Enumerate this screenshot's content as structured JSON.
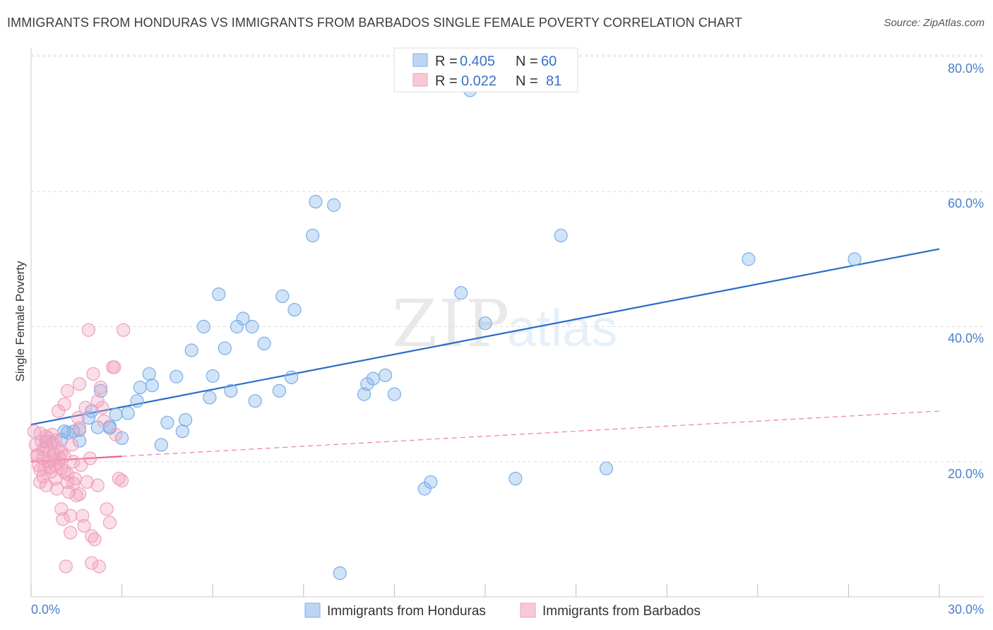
{
  "chart_data": {
    "type": "scatter",
    "title": "IMMIGRANTS FROM HONDURAS VS IMMIGRANTS FROM BARBADOS SINGLE FEMALE POVERTY CORRELATION CHART",
    "source": "Source: ZipAtlas.com",
    "ylabel": "Single Female Poverty",
    "xlabel": "",
    "xlim": [
      0,
      30
    ],
    "ylim": [
      0,
      80
    ],
    "x_tick_labels": [
      "0.0%",
      "30.0%"
    ],
    "y_tick_labels": [
      "20.0%",
      "40.0%",
      "60.0%",
      "80.0%"
    ],
    "y_ticks": [
      20,
      40,
      60,
      80
    ],
    "grid": "horizontal dashed",
    "watermark": "ZIPatlas",
    "legend_box": [
      {
        "series": "Immigrants from Honduras",
        "r_label": "R = ",
        "r_value": "0.405",
        "n_label": "N = ",
        "n_value": "60"
      },
      {
        "series": "Immigrants from Barbados",
        "r_label": "R = ",
        "r_value": "0.022",
        "n_label": "N = ",
        "n_value": "81"
      }
    ],
    "series": [
      {
        "name": "Immigrants from Honduras",
        "color": "#7aaee8",
        "line_color": "#2a6cc9",
        "trend": {
          "x0": 0,
          "y0": 25.5,
          "x1": 30,
          "y1": 51.5,
          "style": "solid"
        },
        "points": [
          [
            0.5,
            23.0
          ],
          [
            1.0,
            23.3
          ],
          [
            1.1,
            24.5
          ],
          [
            1.4,
            24.5
          ],
          [
            1.6,
            24.7
          ],
          [
            1.6,
            23.1
          ],
          [
            1.9,
            26.5
          ],
          [
            2.0,
            27.5
          ],
          [
            2.2,
            25.1
          ],
          [
            2.3,
            30.5
          ],
          [
            2.6,
            25.0
          ],
          [
            2.8,
            27.0
          ],
          [
            3.0,
            23.5
          ],
          [
            3.2,
            27.2
          ],
          [
            3.5,
            29.0
          ],
          [
            3.6,
            31.0
          ],
          [
            3.9,
            33.0
          ],
          [
            4.0,
            31.3
          ],
          [
            4.3,
            22.5
          ],
          [
            4.5,
            25.8
          ],
          [
            4.8,
            32.6
          ],
          [
            5.0,
            24.5
          ],
          [
            5.1,
            26.2
          ],
          [
            5.3,
            36.5
          ],
          [
            5.7,
            40.0
          ],
          [
            5.9,
            29.5
          ],
          [
            6.0,
            32.7
          ],
          [
            6.2,
            44.8
          ],
          [
            6.4,
            36.8
          ],
          [
            6.6,
            30.5
          ],
          [
            6.8,
            40.0
          ],
          [
            7.0,
            41.2
          ],
          [
            7.3,
            40.0
          ],
          [
            7.4,
            29.0
          ],
          [
            7.7,
            37.5
          ],
          [
            8.2,
            30.5
          ],
          [
            8.3,
            44.5
          ],
          [
            8.7,
            42.5
          ],
          [
            8.6,
            32.5
          ],
          [
            9.3,
            53.5
          ],
          [
            9.4,
            58.5
          ],
          [
            10.0,
            58.0
          ],
          [
            10.2,
            3.5
          ],
          [
            11.0,
            30.0
          ],
          [
            11.1,
            31.5
          ],
          [
            11.3,
            32.3
          ],
          [
            11.7,
            32.8
          ],
          [
            12.0,
            30.0
          ],
          [
            13.0,
            16.0
          ],
          [
            13.2,
            17.0
          ],
          [
            14.2,
            45.0
          ],
          [
            14.5,
            75.0
          ],
          [
            15.0,
            40.5
          ],
          [
            16.0,
            17.5
          ],
          [
            17.5,
            53.5
          ],
          [
            19.0,
            19.0
          ],
          [
            23.7,
            50.0
          ],
          [
            27.2,
            50.0
          ],
          [
            1.2,
            24.3
          ],
          [
            2.6,
            25.2
          ]
        ]
      },
      {
        "name": "Immigrants from Barbados",
        "color": "#f0a0bc",
        "line_color": "#e8608a",
        "trend": {
          "x0": 0,
          "y0": 20.0,
          "x1": 3.0,
          "y1": 20.8,
          "style": "solid",
          "ext_x1": 30,
          "ext_y1": 27.5
        },
        "points": [
          [
            0.1,
            24.5
          ],
          [
            0.15,
            22.5
          ],
          [
            0.2,
            21.0
          ],
          [
            0.25,
            19.5
          ],
          [
            0.3,
            17.0
          ],
          [
            0.3,
            24.2
          ],
          [
            0.35,
            23.0
          ],
          [
            0.4,
            21.8
          ],
          [
            0.4,
            20.5
          ],
          [
            0.45,
            19.0
          ],
          [
            0.5,
            22.2
          ],
          [
            0.5,
            16.5
          ],
          [
            0.55,
            23.5
          ],
          [
            0.6,
            21.5
          ],
          [
            0.6,
            20.0
          ],
          [
            0.65,
            18.5
          ],
          [
            0.7,
            24.0
          ],
          [
            0.7,
            22.8
          ],
          [
            0.75,
            21.2
          ],
          [
            0.8,
            19.5
          ],
          [
            0.8,
            17.5
          ],
          [
            0.85,
            16.0
          ],
          [
            0.9,
            27.5
          ],
          [
            0.9,
            22.0
          ],
          [
            0.95,
            20.5
          ],
          [
            1.0,
            19.0
          ],
          [
            1.0,
            13.0
          ],
          [
            1.05,
            11.5
          ],
          [
            1.1,
            28.5
          ],
          [
            1.1,
            18.5
          ],
          [
            1.15,
            4.5
          ],
          [
            1.2,
            30.5
          ],
          [
            1.2,
            17.0
          ],
          [
            1.25,
            15.5
          ],
          [
            1.3,
            12.0
          ],
          [
            1.3,
            9.5
          ],
          [
            1.35,
            22.5
          ],
          [
            1.4,
            20.0
          ],
          [
            1.45,
            17.5
          ],
          [
            1.5,
            15.0
          ],
          [
            1.55,
            26.5
          ],
          [
            1.6,
            25.0
          ],
          [
            1.6,
            31.5
          ],
          [
            1.65,
            19.5
          ],
          [
            1.7,
            12.0
          ],
          [
            1.75,
            10.5
          ],
          [
            1.8,
            28.0
          ],
          [
            1.85,
            17.0
          ],
          [
            1.9,
            39.5
          ],
          [
            1.95,
            20.5
          ],
          [
            2.0,
            9.0
          ],
          [
            2.0,
            5.0
          ],
          [
            2.05,
            33.0
          ],
          [
            2.1,
            8.5
          ],
          [
            2.2,
            16.5
          ],
          [
            2.25,
            4.5
          ],
          [
            2.3,
            31.0
          ],
          [
            2.35,
            28.0
          ],
          [
            2.4,
            26.0
          ],
          [
            2.5,
            13.0
          ],
          [
            2.6,
            11.0
          ],
          [
            2.7,
            34.0
          ],
          [
            2.75,
            34.0
          ],
          [
            2.8,
            24.0
          ],
          [
            0.2,
            20.8
          ],
          [
            0.3,
            18.8
          ],
          [
            0.5,
            23.8
          ],
          [
            0.6,
            19.2
          ],
          [
            0.7,
            20.3
          ],
          [
            0.9,
            19.8
          ],
          [
            1.0,
            21.3
          ],
          [
            1.2,
            18.2
          ],
          [
            1.4,
            16.8
          ],
          [
            2.9,
            17.5
          ],
          [
            3.0,
            17.2
          ],
          [
            3.05,
            39.5
          ],
          [
            0.4,
            17.8
          ],
          [
            0.8,
            23.2
          ],
          [
            1.1,
            20.8
          ],
          [
            1.6,
            15.2
          ],
          [
            2.2,
            29.0
          ]
        ]
      }
    ],
    "bottom_legend": [
      "Immigrants from Honduras",
      "Immigrants from Barbados"
    ]
  }
}
